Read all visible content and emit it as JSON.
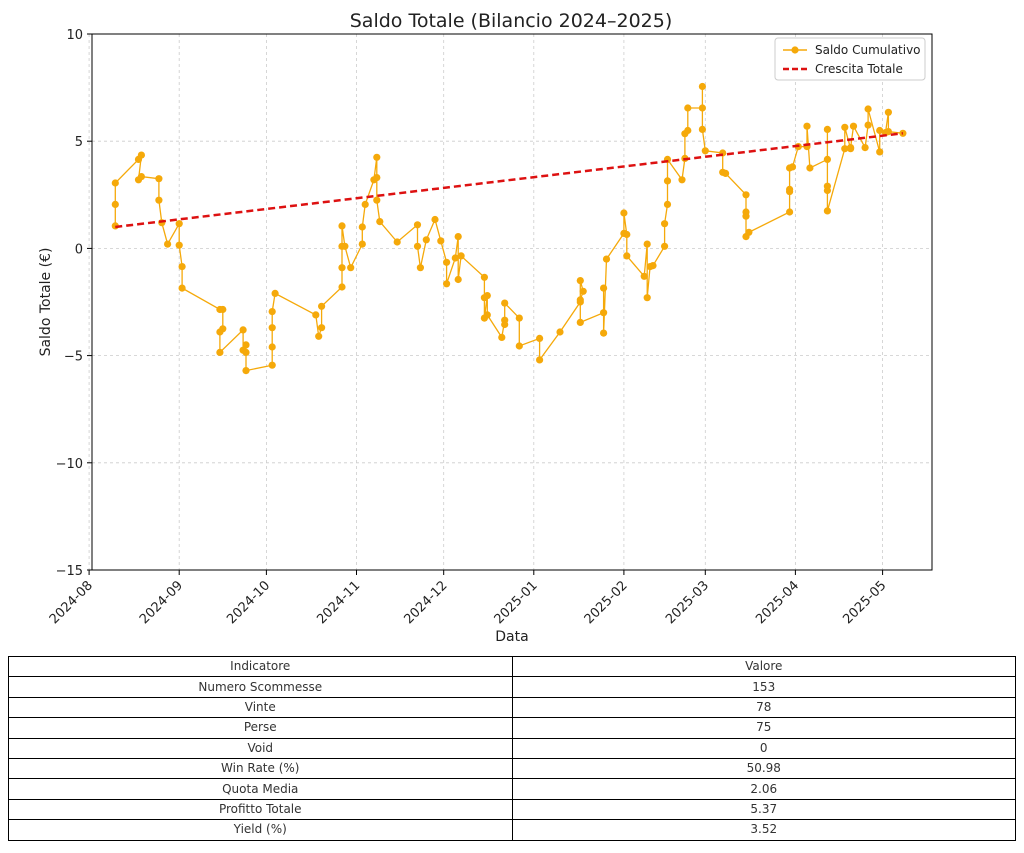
{
  "chart_data": {
    "type": "line",
    "title": "Saldo Totale (Bilancio 2024–2025)",
    "xlabel": "Data",
    "ylabel": "Saldo Totale (€)",
    "ylim": [
      -15,
      10
    ],
    "yticks": [
      10,
      5,
      0,
      -5,
      -10,
      -15
    ],
    "yticklabels": [
      "10",
      "5",
      "0",
      "−5",
      "−10",
      "−15"
    ],
    "xlim": [
      "2024-08-02",
      "2025-05-18"
    ],
    "xticks": [
      "2024-08-01",
      "2024-09-01",
      "2024-10-01",
      "2024-11-01",
      "2024-12-01",
      "2025-01-01",
      "2025-02-01",
      "2025-03-01",
      "2025-04-01",
      "2025-05-01"
    ],
    "xticklabels": [
      "2024-08",
      "2024-09",
      "2024-10",
      "2024-11",
      "2024-12",
      "2025-01",
      "2025-02",
      "2025-03",
      "2025-04",
      "2025-05"
    ],
    "grid": true,
    "legend_position": "top-right",
    "colors": {
      "saldo": "#f5a90a",
      "trend": "#dd1111"
    },
    "series": [
      {
        "name": "Saldo Cumulativo",
        "style": "line-markers",
        "points": [
          [
            "2024-08-10",
            1.05
          ],
          [
            "2024-08-10",
            2.05
          ],
          [
            "2024-08-10",
            3.05
          ],
          [
            "2024-08-18",
            4.15
          ],
          [
            "2024-08-19",
            4.35
          ],
          [
            "2024-08-18",
            3.2
          ],
          [
            "2024-08-19",
            3.35
          ],
          [
            "2024-08-25",
            3.25
          ],
          [
            "2024-08-25",
            2.25
          ],
          [
            "2024-08-26",
            1.2
          ],
          [
            "2024-08-28",
            0.2
          ],
          [
            "2024-09-01",
            1.15
          ],
          [
            "2024-09-01",
            0.15
          ],
          [
            "2024-09-02",
            -0.85
          ],
          [
            "2024-09-02",
            -1.85
          ],
          [
            "2024-09-15",
            -2.85
          ],
          [
            "2024-09-16",
            -2.85
          ],
          [
            "2024-09-16",
            -3.75
          ],
          [
            "2024-09-15",
            -3.9
          ],
          [
            "2024-09-15",
            -4.85
          ],
          [
            "2024-09-23",
            -3.8
          ],
          [
            "2024-09-23",
            -4.75
          ],
          [
            "2024-09-24",
            -4.85
          ],
          [
            "2024-09-24",
            -4.5
          ],
          [
            "2024-09-24",
            -5.7
          ],
          [
            "2024-10-03",
            -5.45
          ],
          [
            "2024-10-03",
            -4.6
          ],
          [
            "2024-10-03",
            -3.7
          ],
          [
            "2024-10-03",
            -2.95
          ],
          [
            "2024-10-04",
            -2.1
          ],
          [
            "2024-10-18",
            -3.1
          ],
          [
            "2024-10-19",
            -4.1
          ],
          [
            "2024-10-20",
            -3.7
          ],
          [
            "2024-10-20",
            -2.7
          ],
          [
            "2024-10-27",
            -1.8
          ],
          [
            "2024-10-27",
            -0.9
          ],
          [
            "2024-10-27",
            0.1
          ],
          [
            "2024-10-27",
            1.05
          ],
          [
            "2024-10-28",
            0.1
          ],
          [
            "2024-10-30",
            -0.9
          ],
          [
            "2024-11-03",
            0.2
          ],
          [
            "2024-11-03",
            1.0
          ],
          [
            "2024-11-04",
            2.05
          ],
          [
            "2024-11-07",
            3.2
          ],
          [
            "2024-11-08",
            4.25
          ],
          [
            "2024-11-08",
            3.3
          ],
          [
            "2024-11-08",
            2.25
          ],
          [
            "2024-11-09",
            1.25
          ],
          [
            "2024-11-15",
            0.3
          ],
          [
            "2024-11-22",
            1.1
          ],
          [
            "2024-11-22",
            0.1
          ],
          [
            "2024-11-23",
            -0.9
          ],
          [
            "2024-11-25",
            0.4
          ],
          [
            "2024-11-28",
            1.35
          ],
          [
            "2024-11-30",
            0.35
          ],
          [
            "2024-12-02",
            -0.65
          ],
          [
            "2024-12-02",
            -1.65
          ],
          [
            "2024-12-05",
            -0.45
          ],
          [
            "2024-12-06",
            0.55
          ],
          [
            "2024-12-06",
            -1.45
          ],
          [
            "2024-12-07",
            -0.35
          ],
          [
            "2024-12-15",
            -1.35
          ],
          [
            "2024-12-15",
            -2.3
          ],
          [
            "2024-12-15",
            -3.25
          ],
          [
            "2024-12-16",
            -2.2
          ],
          [
            "2024-12-16",
            -3.1
          ],
          [
            "2024-12-21",
            -4.15
          ],
          [
            "2024-12-22",
            -3.35
          ],
          [
            "2024-12-22",
            -3.55
          ],
          [
            "2024-12-22",
            -2.55
          ],
          [
            "2024-12-27",
            -3.25
          ],
          [
            "2024-12-27",
            -4.55
          ],
          [
            "2025-01-03",
            -4.2
          ],
          [
            "2025-01-03",
            -5.2
          ],
          [
            "2025-01-10",
            -3.9
          ],
          [
            "2025-01-17",
            -2.5
          ],
          [
            "2025-01-17",
            -1.5
          ],
          [
            "2025-01-18",
            -2.0
          ],
          [
            "2025-01-17",
            -2.4
          ],
          [
            "2025-01-17",
            -3.45
          ],
          [
            "2025-01-25",
            -3.0
          ],
          [
            "2025-01-25",
            -1.85
          ],
          [
            "2025-01-25",
            -3.95
          ],
          [
            "2025-01-26",
            -0.5
          ],
          [
            "2025-02-01",
            0.7
          ],
          [
            "2025-02-01",
            1.65
          ],
          [
            "2025-02-02",
            0.65
          ],
          [
            "2025-02-02",
            -0.35
          ],
          [
            "2025-02-08",
            -1.3
          ],
          [
            "2025-02-09",
            0.2
          ],
          [
            "2025-02-09",
            -2.3
          ],
          [
            "2025-02-10",
            -0.85
          ],
          [
            "2025-02-11",
            -0.8
          ],
          [
            "2025-02-15",
            0.1
          ],
          [
            "2025-02-15",
            1.15
          ],
          [
            "2025-02-16",
            2.05
          ],
          [
            "2025-02-16",
            3.15
          ],
          [
            "2025-02-16",
            4.15
          ],
          [
            "2025-02-21",
            3.2
          ],
          [
            "2025-02-22",
            4.2
          ],
          [
            "2025-02-22",
            5.35
          ],
          [
            "2025-02-23",
            5.5
          ],
          [
            "2025-02-23",
            6.55
          ],
          [
            "2025-02-28",
            6.55
          ],
          [
            "2025-02-28",
            7.55
          ],
          [
            "2025-02-28",
            5.55
          ],
          [
            "2025-03-01",
            4.55
          ],
          [
            "2025-03-07",
            4.45
          ],
          [
            "2025-03-07",
            3.55
          ],
          [
            "2025-03-08",
            3.5
          ],
          [
            "2025-03-15",
            2.5
          ],
          [
            "2025-03-15",
            1.5
          ],
          [
            "2025-03-15",
            1.7
          ],
          [
            "2025-03-15",
            0.55
          ],
          [
            "2025-03-16",
            0.75
          ],
          [
            "2025-03-30",
            1.7
          ],
          [
            "2025-03-30",
            2.75
          ],
          [
            "2025-03-30",
            2.65
          ],
          [
            "2025-03-30",
            3.75
          ],
          [
            "2025-03-31",
            3.8
          ],
          [
            "2025-04-02",
            4.75
          ],
          [
            "2025-04-05",
            4.75
          ],
          [
            "2025-04-05",
            5.7
          ],
          [
            "2025-04-06",
            3.75
          ],
          [
            "2025-04-12",
            4.15
          ],
          [
            "2025-04-12",
            5.55
          ],
          [
            "2025-04-12",
            2.9
          ],
          [
            "2025-04-12",
            2.7
          ],
          [
            "2025-04-12",
            1.75
          ],
          [
            "2025-04-18",
            4.65
          ],
          [
            "2025-04-18",
            5.65
          ],
          [
            "2025-04-20",
            4.65
          ],
          [
            "2025-04-20",
            4.7
          ],
          [
            "2025-04-21",
            5.7
          ],
          [
            "2025-04-25",
            4.7
          ],
          [
            "2025-04-26",
            5.75
          ],
          [
            "2025-04-26",
            6.5
          ],
          [
            "2025-04-30",
            4.5
          ],
          [
            "2025-04-30",
            5.5
          ],
          [
            "2025-05-02",
            5.4
          ],
          [
            "2025-05-03",
            6.35
          ],
          [
            "2025-05-03",
            5.45
          ],
          [
            "2025-05-08",
            5.37
          ]
        ]
      },
      {
        "name": "Crescita Totale",
        "style": "dashed",
        "points": [
          [
            "2024-08-10",
            1.0
          ],
          [
            "2025-05-08",
            5.37
          ]
        ]
      }
    ]
  },
  "table": {
    "headers": [
      "Indicatore",
      "Valore"
    ],
    "rows": [
      [
        "Numero Scommesse",
        "153"
      ],
      [
        "Vinte",
        "78"
      ],
      [
        "Perse",
        "75"
      ],
      [
        "Void",
        "0"
      ],
      [
        "Win Rate (%)",
        "50.98"
      ],
      [
        "Quota Media",
        "2.06"
      ],
      [
        "Profitto Totale",
        "5.37"
      ],
      [
        "Yield (%)",
        "3.52"
      ]
    ]
  }
}
